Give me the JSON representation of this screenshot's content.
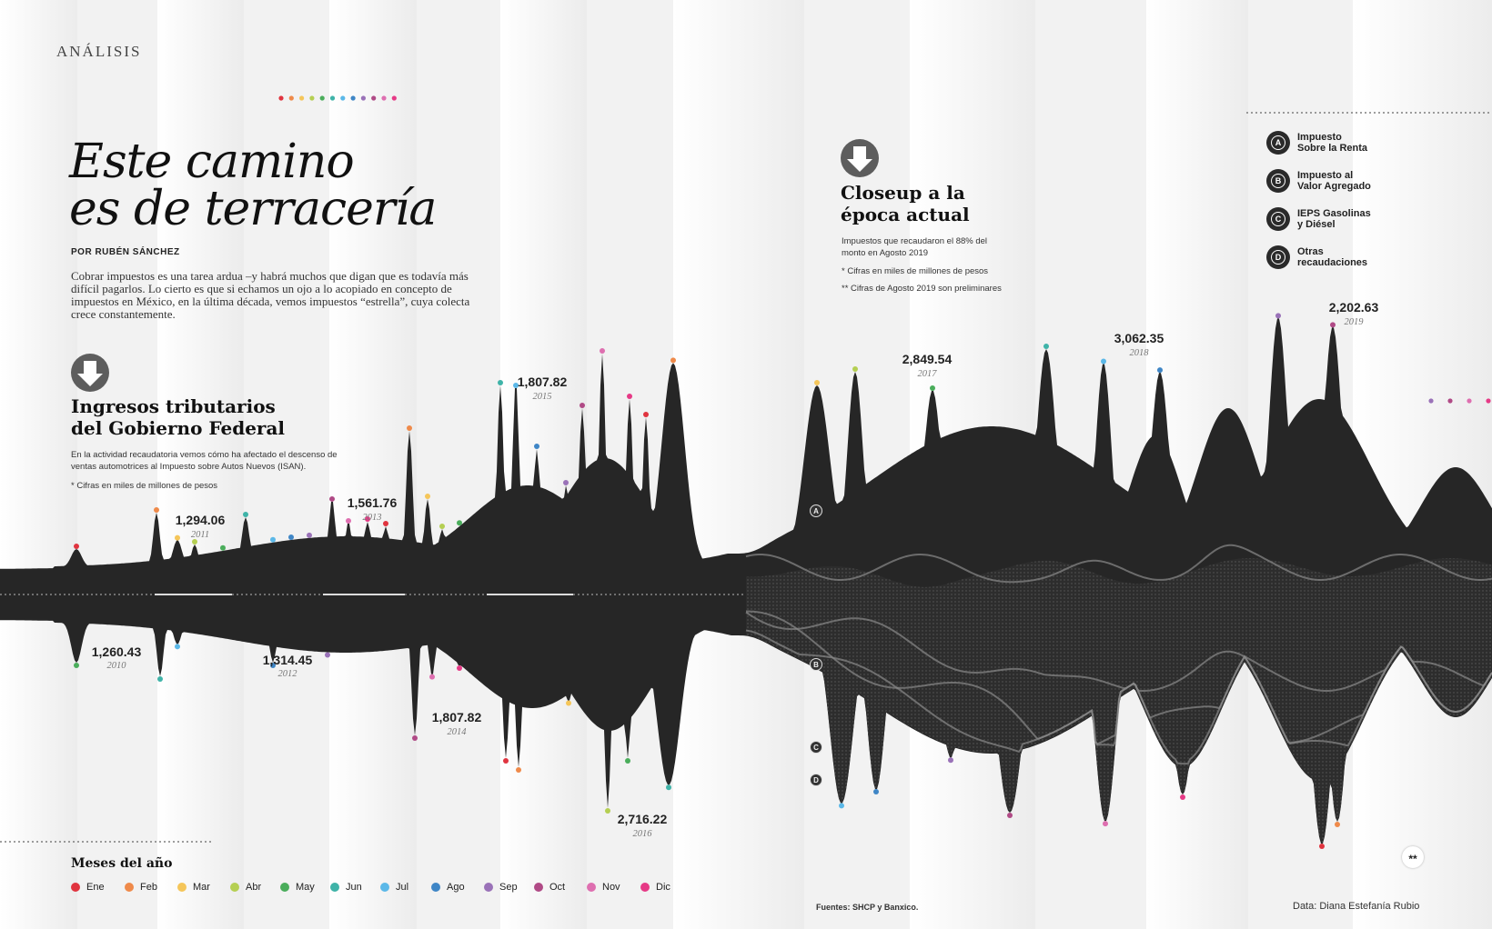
{
  "section_label": "ANÁLISIS",
  "title_line1": "Este camino",
  "title_line2": "es de terracería",
  "byline": "POR RUBÉN SÁNCHEZ",
  "intro": "Cobrar impuestos es una tarea ardua –y habrá muchos que digan que es todavía más difícil pagarlos. Lo cierto es que si echamos un ojo a lo acopiado en concepto de impuestos en México, en la última década, vemos impuestos “estrella”, cuya colecta crece constantemente.",
  "left_heading_line1": "Ingresos tributarios",
  "left_heading_line2": "del Gobierno Federal",
  "left_desc_line1": "En la actividad recaudatoria vemos cómo ha afectado el descenso de",
  "left_desc_line2": "ventas automotrices al Impuesto sobre Autos Nuevos (ISAN).",
  "left_note": "* Cifras en miles de millones de pesos",
  "right_heading_line1": "Closeup a la",
  "right_heading_line2": "época actual",
  "right_desc_line1": "Impuestos que recaudaron el 88% del",
  "right_desc_line2": "monto en Agosto 2019",
  "right_note1": "* Cifras en miles de millones de pesos",
  "right_note2": "** Cifras de Agosto 2019 son preliminares",
  "tax_legend": [
    {
      "letter": "A",
      "line1": "Impuesto",
      "line2": "Sobre la Renta"
    },
    {
      "letter": "B",
      "line1": "Impuesto al",
      "line2": "Valor Agregado"
    },
    {
      "letter": "C",
      "line1": "IEPS Gasolinas",
      "line2": "y Diésel"
    },
    {
      "letter": "D",
      "line1": "Otras",
      "line2": "recaudaciones"
    }
  ],
  "months_title": "Meses del año",
  "months": [
    {
      "label": "Ene",
      "color": "#e0343f"
    },
    {
      "label": "Feb",
      "color": "#ef8a4a"
    },
    {
      "label": "Mar",
      "color": "#f5c65a"
    },
    {
      "label": "Abr",
      "color": "#b5cf52"
    },
    {
      "label": "May",
      "color": "#4aad5b"
    },
    {
      "label": "Jun",
      "color": "#3fb3a8"
    },
    {
      "label": "Jul",
      "color": "#5bb8e8"
    },
    {
      "label": "Ago",
      "color": "#3f86c6"
    },
    {
      "label": "Sep",
      "color": "#9a72b8"
    },
    {
      "label": "Oct",
      "color": "#b04a86"
    },
    {
      "label": "Nov",
      "color": "#de6fb0"
    },
    {
      "label": "Dic",
      "color": "#e63a86"
    }
  ],
  "sources": "Fuentes: SHCP y Banxico.",
  "credit": "Data: Diana Estefanía Rubio",
  "preliminary_mark": "**",
  "chart_data": {
    "type": "area",
    "annual_totals": [
      {
        "year": "2010",
        "value": 1260.43
      },
      {
        "year": "2011",
        "value": 1294.06
      },
      {
        "year": "2012",
        "value": 1314.45
      },
      {
        "year": "2013",
        "value": 1561.76
      },
      {
        "year": "2014",
        "value": 1807.82
      },
      {
        "year": "2015",
        "value": 1807.82
      },
      {
        "year": "2016",
        "value": 2716.22
      },
      {
        "year": "2017",
        "value": 2849.54
      },
      {
        "year": "2018",
        "value": 3062.35
      },
      {
        "year": "2019",
        "value": 2202.63
      }
    ],
    "series_bands": [
      "A",
      "B",
      "C",
      "D"
    ]
  }
}
